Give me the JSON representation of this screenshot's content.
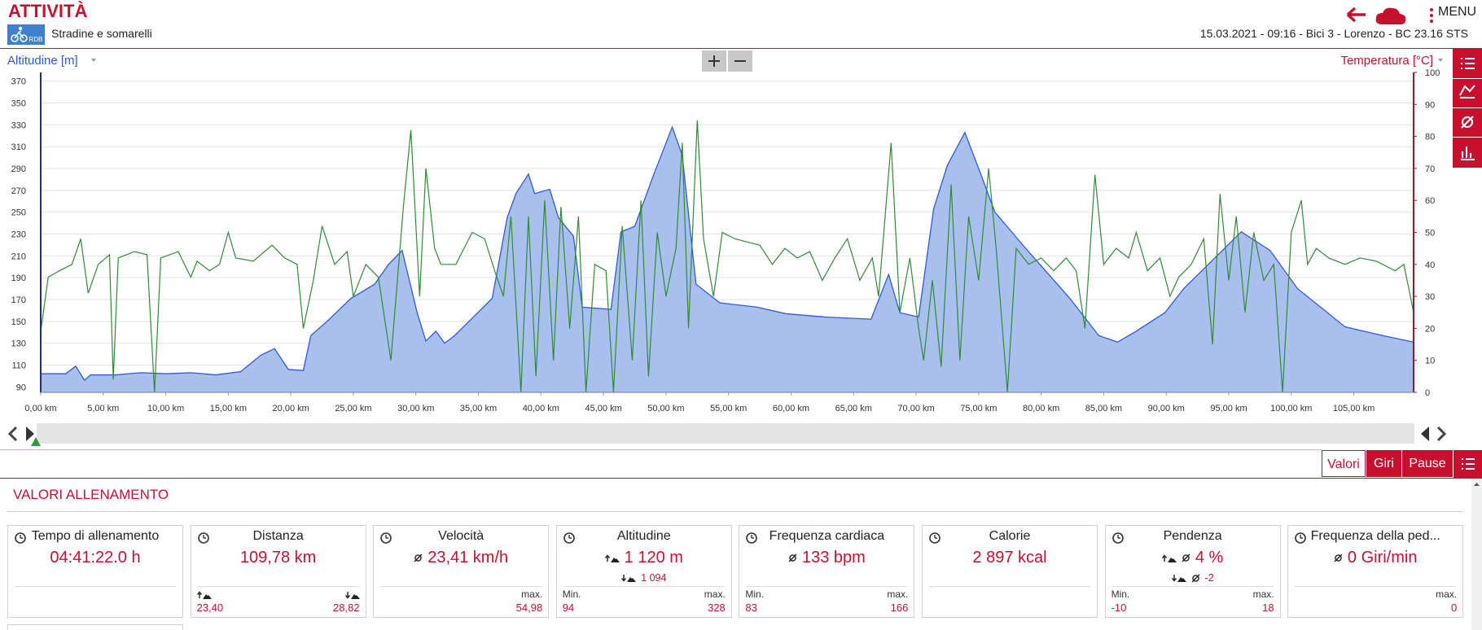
{
  "header": {
    "title": "ATTIVITÀ",
    "logo": "RDB",
    "subtitle": "Stradine e somarelli",
    "menu": "MENU",
    "info": "15.03.2021 - 09:16 - Bici 3 - Lorenzo - BC 23.16 STS"
  },
  "chart_data": {
    "type": "area",
    "series": [
      {
        "name": "Altitudine [m]",
        "type": "area",
        "color": "#2d5ad9",
        "fill": "#a9c0ef",
        "x": [
          0,
          2,
          2.8,
          3.5,
          4,
          6,
          8,
          10,
          12,
          14,
          16,
          17.6,
          18.7,
          19.8,
          21,
          21.6,
          22.9,
          24.8,
          26.7,
          27.8,
          28.9,
          30.1,
          30.8,
          31.6,
          32.3,
          33.1,
          34.6,
          36.1,
          37.3,
          38,
          39,
          39.5,
          40.7,
          41.4,
          42.6,
          43.3,
          45.6,
          46.4,
          47.5,
          49,
          50.5,
          51.3,
          52.4,
          54.3,
          57.3,
          59.6,
          62.7,
          66.4,
          67.8,
          68.7,
          70.2,
          71.4,
          72.5,
          73.9,
          75.2,
          76.3,
          78.6,
          82.3,
          84.6,
          86.1,
          87.6,
          89.9,
          91.4,
          93.7,
          96,
          98.3,
          100.5,
          104.3,
          107.3,
          109.78
        ],
        "values": [
          102,
          102,
          109,
          96,
          101,
          101,
          103,
          102,
          103,
          101,
          104,
          119,
          125,
          106,
          105,
          137,
          150,
          171,
          184,
          202,
          215,
          158,
          132,
          141,
          130,
          137,
          154,
          171,
          245,
          267,
          285,
          267,
          271,
          245,
          228,
          163,
          161,
          232,
          237,
          284,
          328,
          302,
          184,
          167,
          163,
          157,
          154,
          152,
          193,
          158,
          154,
          253,
          293,
          323,
          284,
          250,
          219,
          171,
          137,
          131,
          141,
          158,
          180,
          206,
          232,
          215,
          180,
          145,
          137,
          131
        ]
      },
      {
        "name": "Temperatura [°C]",
        "type": "line",
        "axis": "y2",
        "color": "#2e8b36",
        "x": [
          0,
          0.6,
          1.5,
          2.5,
          3.2,
          3.8,
          4.6,
          5.5,
          5.8,
          6.2,
          7.5,
          8.5,
          9.1,
          9.6,
          11,
          12,
          12.5,
          13.5,
          14.3,
          15,
          15.6,
          17,
          18.5,
          19.5,
          20.5,
          21,
          21.8,
          22.5,
          23.5,
          24.5,
          25,
          26,
          27,
          28,
          29,
          29.6,
          30.3,
          30.8,
          31.5,
          32,
          33.2,
          34.5,
          35.5,
          36.3,
          37,
          37.6,
          38.4,
          39,
          39.6,
          40.3,
          41,
          41.6,
          42.3,
          43,
          43.6,
          44.3,
          45.2,
          45.8,
          46.5,
          47.3,
          48,
          48.6,
          49.3,
          50,
          50.8,
          51.3,
          51.8,
          52.5,
          53,
          53.8,
          54.5,
          55.5,
          56.5,
          57.5,
          58.5,
          59.5,
          60.5,
          61.5,
          62.5,
          63.5,
          64.5,
          65.5,
          66.5,
          67,
          68,
          68.7,
          69.5,
          70.2,
          70.6,
          71.3,
          72,
          72.8,
          73.5,
          74.2,
          75,
          75.8,
          76.4,
          77.3,
          78,
          79,
          80,
          81,
          82,
          82.8,
          83.5,
          84.3,
          85,
          86,
          87,
          87.6,
          88.5,
          89.5,
          90.3,
          91,
          92,
          93,
          93.7,
          94.3,
          95,
          95.6,
          96.3,
          97,
          97.8,
          98.6,
          99.3,
          100,
          100.8,
          101.3,
          102,
          103,
          104.3,
          105.5,
          106.8,
          108.3,
          109,
          109.78
        ],
        "values": [
          19,
          36,
          38,
          40,
          48,
          31,
          40,
          43,
          4,
          42,
          44,
          43,
          0,
          42,
          44,
          36,
          41,
          38,
          40,
          50,
          42,
          41,
          46,
          42,
          40,
          20,
          35,
          52,
          40,
          44,
          30,
          40,
          36,
          10,
          58,
          82,
          30,
          70,
          45,
          40,
          40,
          50,
          48,
          38,
          30,
          55,
          0,
          55,
          5,
          60,
          10,
          58,
          20,
          55,
          0,
          40,
          38,
          0,
          52,
          10,
          60,
          5,
          50,
          30,
          45,
          78,
          20,
          85,
          48,
          30,
          50,
          48,
          47,
          46,
          40,
          45,
          42,
          44,
          35,
          42,
          48,
          35,
          42,
          30,
          78,
          25,
          42,
          20,
          10,
          35,
          8,
          65,
          10,
          55,
          35,
          70,
          45,
          0,
          45,
          40,
          42,
          38,
          42,
          38,
          20,
          68,
          40,
          45,
          42,
          50,
          38,
          42,
          30,
          36,
          40,
          48,
          15,
          62,
          35,
          55,
          25,
          50,
          35,
          40,
          0,
          50,
          60,
          40,
          45,
          42,
          40,
          42,
          41,
          38,
          40,
          25
        ]
      }
    ],
    "xlim": [
      0,
      109.78
    ],
    "xticks": [
      {
        "value": 0,
        "label": "0,00 km"
      },
      {
        "value": 5,
        "label": "5,00 km"
      },
      {
        "value": 10,
        "label": "10,00 km"
      },
      {
        "value": 15,
        "label": "15,00 km"
      },
      {
        "value": 20,
        "label": "20,00 km"
      },
      {
        "value": 25,
        "label": "25,00 km"
      },
      {
        "value": 30,
        "label": "30,00 km"
      },
      {
        "value": 35,
        "label": "35,00 km"
      },
      {
        "value": 40,
        "label": "40,00 km"
      },
      {
        "value": 45,
        "label": "45,00 km"
      },
      {
        "value": 50,
        "label": "50,00 km"
      },
      {
        "value": 55,
        "label": "55,00 km"
      },
      {
        "value": 60,
        "label": "60,00 km"
      },
      {
        "value": 65,
        "label": "65,00 km"
      },
      {
        "value": 70,
        "label": "70,00 km"
      },
      {
        "value": 75,
        "label": "75,00 km"
      },
      {
        "value": 80,
        "label": "80,00 km"
      },
      {
        "value": 85,
        "label": "85,00 km"
      },
      {
        "value": 90,
        "label": "90,00 km"
      },
      {
        "value": 95,
        "label": "95,00 km"
      },
      {
        "value": 100,
        "label": "100,00 km"
      },
      {
        "value": 105,
        "label": "105,00 km"
      }
    ],
    "ylim": [
      85,
      378
    ],
    "yticks": [
      90,
      110,
      130,
      150,
      170,
      190,
      210,
      230,
      250,
      270,
      290,
      310,
      330,
      350,
      370
    ],
    "y2lim": [
      0,
      100
    ],
    "y2ticks": [
      0,
      10,
      20,
      30,
      40,
      50,
      60,
      70,
      80,
      90,
      100
    ],
    "grid": true
  },
  "tabs": [
    "Valori",
    "Giri",
    "Pause"
  ],
  "section_title": "VALORI ALLENAMENTO",
  "cards": [
    {
      "title": "Tempo di allenamento",
      "value": "04:41:22.0 h"
    },
    {
      "title": "Distanza",
      "value": "109,78 km",
      "left_value": "23,40",
      "right_value": "28,82"
    },
    {
      "title": "Velocità",
      "value": "23,41 km/h",
      "right_label": "max.",
      "right_value": "54,98"
    },
    {
      "title": "Altitudine",
      "value": "1 120 m",
      "sub": "1 094",
      "left_label": "Min.",
      "left_value": "94",
      "right_label": "max.",
      "right_value": "328"
    },
    {
      "title": "Frequenza cardiaca",
      "value": "133 bpm",
      "left_label": "Min.",
      "left_value": "83",
      "right_label": "max.",
      "right_value": "166"
    },
    {
      "title": "Calorie",
      "value": "2 897 kcal"
    },
    {
      "title": "Pendenza",
      "value": "4 %",
      "sub": "-2",
      "left_label": "Min.",
      "left_value": "-10",
      "right_label": "max.",
      "right_value": "18"
    },
    {
      "title": "Frequenza della ped...",
      "value": "0 Giri/min",
      "right_label": "max.",
      "right_value": "0"
    }
  ]
}
